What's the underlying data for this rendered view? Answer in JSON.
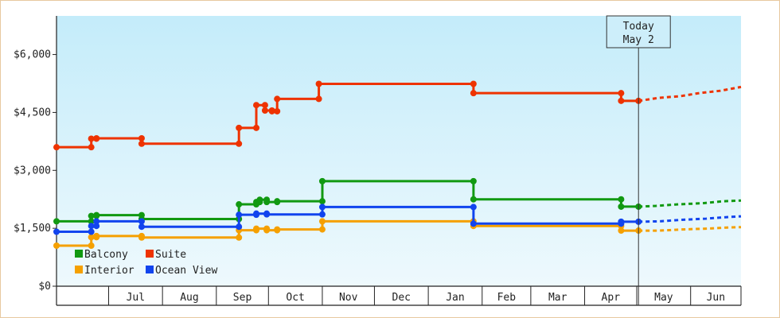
{
  "chart_data": {
    "type": "line",
    "title": "",
    "xlabel": "",
    "ylabel": "",
    "ylim": [
      0,
      7000
    ],
    "y_ticks": [
      {
        "value": 0,
        "label": "$0"
      },
      {
        "value": 1500,
        "label": "$1,500"
      },
      {
        "value": 3000,
        "label": "$3,000"
      },
      {
        "value": 4500,
        "label": "$4,500"
      },
      {
        "value": 6000,
        "label": "$6,000"
      }
    ],
    "x_range": [
      "2024-06-01",
      "2025-06-30"
    ],
    "months": [
      {
        "label": "Jul",
        "start": "2024-07-01"
      },
      {
        "label": "Aug",
        "start": "2024-08-01"
      },
      {
        "label": "Sep",
        "start": "2024-09-01"
      },
      {
        "label": "Oct",
        "start": "2024-10-01"
      },
      {
        "label": "Nov",
        "start": "2024-11-01"
      },
      {
        "label": "Dec",
        "start": "2024-12-01"
      },
      {
        "label": "Jan",
        "start": "2025-01-01"
      },
      {
        "label": "Feb",
        "start": "2025-02-01"
      },
      {
        "label": "Mar",
        "start": "2025-03-01"
      },
      {
        "label": "Apr",
        "start": "2025-04-01"
      },
      {
        "label": "May",
        "start": "2025-05-01"
      },
      {
        "label": "Jun",
        "start": "2025-06-01"
      }
    ],
    "today": {
      "line1": "Today",
      "line2": "May 2",
      "date": "2025-05-02"
    },
    "grid": false,
    "legend_position": "bottom-left",
    "series": [
      {
        "name": "Balcony",
        "color": "#119911",
        "points": [
          [
            "2024-06-01",
            1680
          ],
          [
            "2024-06-21",
            1680
          ],
          [
            "2024-06-21",
            1820
          ],
          [
            "2024-06-24",
            1820
          ],
          [
            "2024-06-24",
            1840
          ],
          [
            "2024-07-20",
            1840
          ],
          [
            "2024-07-20",
            1740
          ],
          [
            "2024-09-14",
            1740
          ],
          [
            "2024-09-14",
            2120
          ],
          [
            "2024-09-24",
            2120
          ],
          [
            "2024-09-24",
            2180
          ],
          [
            "2024-09-26",
            2180
          ],
          [
            "2024-09-26",
            2240
          ],
          [
            "2024-09-30",
            2240
          ],
          [
            "2024-09-30",
            2180
          ],
          [
            "2024-10-06",
            2180
          ],
          [
            "2024-10-06",
            2200
          ],
          [
            "2024-11-01",
            2200
          ],
          [
            "2024-11-01",
            2720
          ],
          [
            "2025-01-27",
            2720
          ],
          [
            "2025-01-27",
            2250
          ],
          [
            "2025-04-22",
            2250
          ],
          [
            "2025-04-22",
            2060
          ],
          [
            "2025-05-02",
            2060
          ]
        ],
        "forecast": [
          [
            "2025-05-02",
            2060
          ],
          [
            "2025-05-12",
            2080
          ],
          [
            "2025-05-25",
            2120
          ],
          [
            "2025-06-08",
            2150
          ],
          [
            "2025-06-20",
            2200
          ],
          [
            "2025-06-30",
            2220
          ]
        ]
      },
      {
        "name": "Suite",
        "color": "#ee3300",
        "points": [
          [
            "2024-06-01",
            3600
          ],
          [
            "2024-06-21",
            3600
          ],
          [
            "2024-06-21",
            3820
          ],
          [
            "2024-06-24",
            3820
          ],
          [
            "2024-06-24",
            3830
          ],
          [
            "2024-07-20",
            3830
          ],
          [
            "2024-07-20",
            3690
          ],
          [
            "2024-09-14",
            3690
          ],
          [
            "2024-09-14",
            4100
          ],
          [
            "2024-09-24",
            4100
          ],
          [
            "2024-09-24",
            4690
          ],
          [
            "2024-09-29",
            4690
          ],
          [
            "2024-09-29",
            4550
          ],
          [
            "2024-10-03",
            4550
          ],
          [
            "2024-10-03",
            4530
          ],
          [
            "2024-10-06",
            4530
          ],
          [
            "2024-10-06",
            4850
          ],
          [
            "2024-10-30",
            4850
          ],
          [
            "2024-10-30",
            5240
          ],
          [
            "2025-01-27",
            5240
          ],
          [
            "2025-01-27",
            5000
          ],
          [
            "2025-04-22",
            5000
          ],
          [
            "2025-04-22",
            4800
          ],
          [
            "2025-05-02",
            4800
          ]
        ],
        "forecast": [
          [
            "2025-05-02",
            4800
          ],
          [
            "2025-05-14",
            4880
          ],
          [
            "2025-05-26",
            4920
          ],
          [
            "2025-06-06",
            5000
          ],
          [
            "2025-06-18",
            5060
          ],
          [
            "2025-06-30",
            5160
          ]
        ]
      },
      {
        "name": "Interior",
        "color": "#f5a000",
        "points": [
          [
            "2024-06-01",
            1050
          ],
          [
            "2024-06-21",
            1050
          ],
          [
            "2024-06-21",
            1270
          ],
          [
            "2024-06-24",
            1270
          ],
          [
            "2024-06-24",
            1300
          ],
          [
            "2024-07-20",
            1300
          ],
          [
            "2024-07-20",
            1260
          ],
          [
            "2024-09-14",
            1260
          ],
          [
            "2024-09-14",
            1450
          ],
          [
            "2024-09-24",
            1450
          ],
          [
            "2024-09-24",
            1490
          ],
          [
            "2024-09-30",
            1490
          ],
          [
            "2024-09-30",
            1450
          ],
          [
            "2024-10-06",
            1450
          ],
          [
            "2024-10-06",
            1470
          ],
          [
            "2024-11-01",
            1470
          ],
          [
            "2024-11-01",
            1680
          ],
          [
            "2025-01-27",
            1680
          ],
          [
            "2025-01-27",
            1560
          ],
          [
            "2025-04-22",
            1560
          ],
          [
            "2025-04-22",
            1440
          ],
          [
            "2025-05-02",
            1440
          ]
        ],
        "forecast": [
          [
            "2025-05-02",
            1440
          ],
          [
            "2025-05-14",
            1440
          ],
          [
            "2025-05-27",
            1470
          ],
          [
            "2025-06-10",
            1490
          ],
          [
            "2025-06-22",
            1520
          ],
          [
            "2025-06-30",
            1530
          ]
        ]
      },
      {
        "name": "Ocean View",
        "color": "#1144ee",
        "points": [
          [
            "2024-06-01",
            1410
          ],
          [
            "2024-06-21",
            1410
          ],
          [
            "2024-06-21",
            1560
          ],
          [
            "2024-06-24",
            1560
          ],
          [
            "2024-06-24",
            1680
          ],
          [
            "2024-07-20",
            1680
          ],
          [
            "2024-07-20",
            1540
          ],
          [
            "2024-09-14",
            1540
          ],
          [
            "2024-09-14",
            1850
          ],
          [
            "2024-09-24",
            1850
          ],
          [
            "2024-09-24",
            1880
          ],
          [
            "2024-09-30",
            1880
          ],
          [
            "2024-09-30",
            1860
          ],
          [
            "2024-11-01",
            1860
          ],
          [
            "2024-11-01",
            2050
          ],
          [
            "2025-01-27",
            2050
          ],
          [
            "2025-01-27",
            1620
          ],
          [
            "2025-04-22",
            1620
          ],
          [
            "2025-04-22",
            1670
          ],
          [
            "2025-05-02",
            1670
          ]
        ],
        "forecast": [
          [
            "2025-05-02",
            1670
          ],
          [
            "2025-05-14",
            1680
          ],
          [
            "2025-05-27",
            1720
          ],
          [
            "2025-06-10",
            1750
          ],
          [
            "2025-06-22",
            1790
          ],
          [
            "2025-06-30",
            1810
          ]
        ]
      }
    ]
  }
}
